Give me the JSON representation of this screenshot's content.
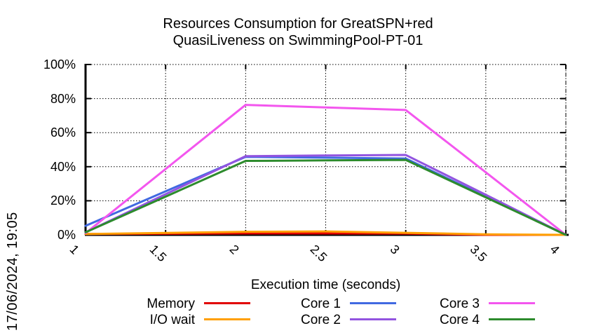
{
  "timestamp_label": "17/06/2024, 19:05",
  "title_line1": "Resources Consumption for GreatSPN+red",
  "title_line2": "QuasiLiveness on SwimmingPool-PT-01",
  "chart_data": {
    "type": "line",
    "title": "Resources Consumption for GreatSPN+red QuasiLiveness on SwimmingPool-PT-01",
    "xlabel": "Execution time (seconds)",
    "ylabel": "",
    "xlim": [
      1,
      4
    ],
    "ylim": [
      0,
      100
    ],
    "grid": true,
    "legend_position": "bottom",
    "xticks": [
      1,
      1.5,
      2,
      2.5,
      3,
      3.5,
      4
    ],
    "xtick_labels": [
      "1",
      "1.5",
      "2",
      "2.5",
      "3",
      "3.5",
      "4"
    ],
    "yticks": [
      0,
      20,
      40,
      60,
      80,
      100
    ],
    "ytick_labels": [
      "0%",
      "20%",
      "40%",
      "60%",
      "80%",
      "100%"
    ],
    "x": [
      1,
      2,
      2.5,
      3,
      3.5,
      4
    ],
    "series": [
      {
        "name": "Memory",
        "color": "#e10000",
        "values": [
          0.5,
          0.8,
          0.8,
          0.7,
          0.0,
          0.0
        ]
      },
      {
        "name": "I/O wait",
        "color": "#ff9f00",
        "values": [
          0.5,
          1.8,
          2.0,
          1.2,
          0.3,
          0.0
        ]
      },
      {
        "name": "Core 1",
        "color": "#4169e1",
        "values": [
          5.3,
          45.8,
          45.3,
          44.8,
          22.4,
          0.0
        ]
      },
      {
        "name": "Core 2",
        "color": "#9254e0",
        "values": [
          1.5,
          46.2,
          46.6,
          46.9,
          23.5,
          0.0
        ]
      },
      {
        "name": "Core 3",
        "color": "#f356ee",
        "values": [
          1.0,
          76.3,
          74.8,
          73.3,
          36.7,
          0.0
        ]
      },
      {
        "name": "Core 4",
        "color": "#2d8b2d",
        "values": [
          1.5,
          43.4,
          43.7,
          44.0,
          22.0,
          0.0
        ]
      }
    ]
  }
}
